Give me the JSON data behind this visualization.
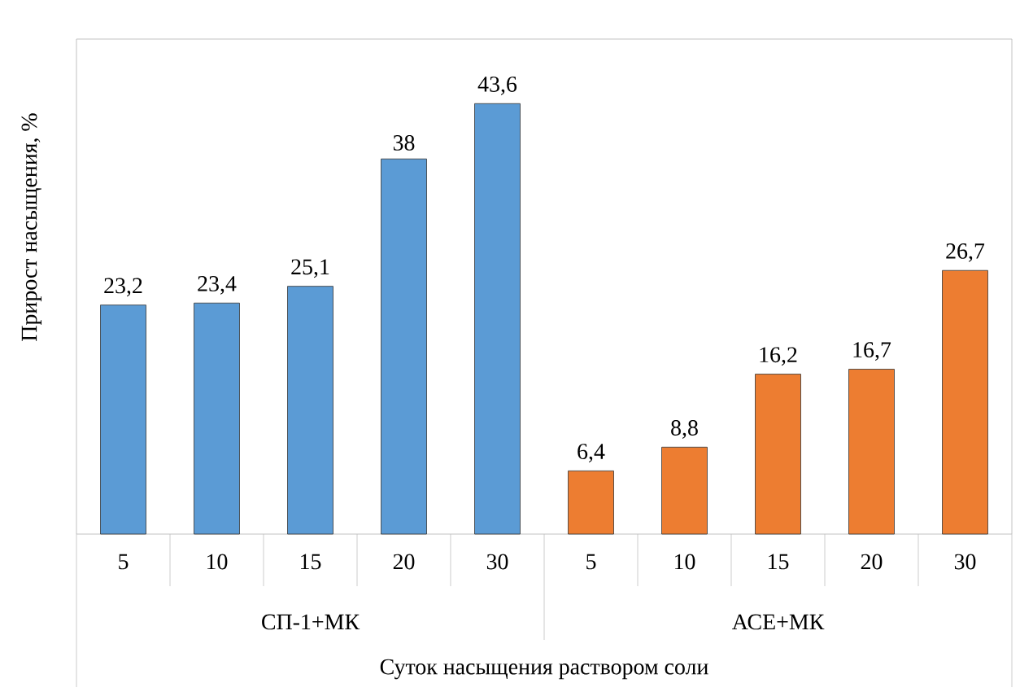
{
  "chart_data": {
    "type": "bar",
    "ylabel": "Прирост насыщения, %",
    "xlabel": "Суток насыщения раствором соли",
    "categories": [
      "5",
      "10",
      "15",
      "20",
      "30",
      "5",
      "10",
      "15",
      "20",
      "30"
    ],
    "values": [
      23.2,
      23.4,
      25.1,
      38,
      43.6,
      6.4,
      8.8,
      16.2,
      16.7,
      26.7
    ],
    "value_labels": [
      "23,2",
      "23,4",
      "25,1",
      "38",
      "43,6",
      "6,4",
      "8,8",
      "16,2",
      "16,7",
      "26,7"
    ],
    "colors": [
      "#5b9bd5",
      "#5b9bd5",
      "#5b9bd5",
      "#5b9bd5",
      "#5b9bd5",
      "#ed7d31",
      "#ed7d31",
      "#ed7d31",
      "#ed7d31",
      "#ed7d31"
    ],
    "annotations": [
      "СП-1+МК",
      "АСЕ+МК"
    ]
  }
}
